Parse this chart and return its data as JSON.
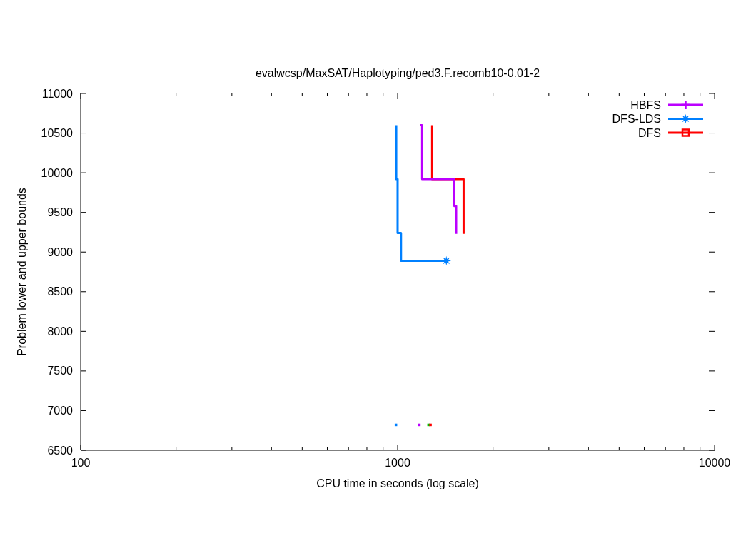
{
  "chart_data": {
    "type": "step",
    "title": "evalwcsp/MaxSAT/Haplotyping/ped3.F.recomb10-0.01-2",
    "xlabel": "CPU time in seconds (log scale)",
    "ylabel": "Problem lower and upper bounds",
    "log": "x",
    "legend": "top right",
    "xlim": [
      100,
      10000
    ],
    "xticks": [
      100,
      {
        "value": 200,
        "label": null
      },
      {
        "value": 300,
        "label": null
      },
      {
        "value": 400,
        "label": null
      },
      {
        "value": 500,
        "label": null
      },
      {
        "value": 600,
        "label": null
      },
      {
        "value": 700,
        "label": null
      },
      {
        "value": 800,
        "label": null
      },
      {
        "value": 900,
        "label": null
      },
      1000,
      {
        "value": 2000,
        "label": null
      },
      {
        "value": 3000,
        "label": null
      },
      {
        "value": 4000,
        "label": null
      },
      {
        "value": 5000,
        "label": null
      },
      {
        "value": 6000,
        "label": null
      },
      {
        "value": 7000,
        "label": null
      },
      {
        "value": 8000,
        "label": null
      },
      {
        "value": 9000,
        "label": null
      },
      10000
    ],
    "ylim": [
      6500,
      11000
    ],
    "yticks": [
      6500,
      7000,
      7500,
      8000,
      8500,
      9000,
      9500,
      10000,
      10500,
      11000
    ],
    "series": [
      {
        "name": "HBFS",
        "type": "scatter",
        "color": "#bb00ff",
        "marker": "cross"
      },
      {
        "name": "DFS-LDS",
        "type": "scatter",
        "color": "#0080ff",
        "marker": "star",
        "x": [
          1425
        ],
        "values": [
          8890
        ]
      },
      {
        "name": "DFS",
        "type": "scatter",
        "color": "#ff0000",
        "marker": "square"
      },
      {
        "color": "#bb00ff",
        "x": [
          1180,
          1195,
          1510,
          1530
        ],
        "values": [
          10600,
          9920,
          9580,
          9230
        ]
      },
      {
        "color": "#0080ff",
        "x": [
          990,
          990,
          1000,
          1025,
          1425
        ],
        "values": [
          10600,
          9920,
          9240,
          8890,
          8890
        ]
      },
      {
        "color": "#ff0000",
        "x": [
          1285,
          1285,
          1615
        ],
        "values": [
          10600,
          9920,
          9230
        ]
      },
      {
        "type": "scatter",
        "color": "#0080ff",
        "x": [
          988
        ],
        "values": [
          6820
        ]
      },
      {
        "type": "scatter",
        "color": "#bb00ff",
        "x": [
          1171
        ],
        "values": [
          6820
        ]
      },
      {
        "type": "scatter",
        "color": "#00c000",
        "x": [
          1252
        ],
        "values": [
          6820
        ]
      },
      {
        "type": "scatter",
        "color": "#ff0000",
        "x": [
          1270
        ],
        "values": [
          6820
        ]
      }
    ]
  }
}
